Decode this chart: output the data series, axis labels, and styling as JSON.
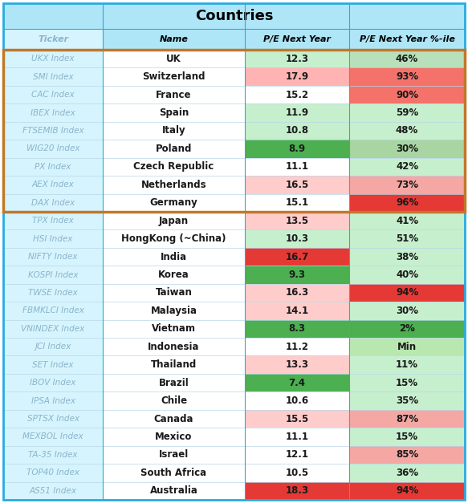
{
  "title": "Countries",
  "col_headers": [
    "Ticker",
    "Name",
    "P/E Next Year",
    "P/E Next Year %-ile"
  ],
  "rows": [
    {
      "ticker": "UKX Index",
      "name": "UK",
      "pe": "12.3",
      "pct": "46%",
      "pe_color": "#c6efce",
      "pct_color": "#b8e0bb"
    },
    {
      "ticker": "SMI Index",
      "name": "Switzerland",
      "pe": "17.9",
      "pct": "93%",
      "pe_color": "#ffb3b3",
      "pct_color": "#f4726a"
    },
    {
      "ticker": "CAC Index",
      "name": "France",
      "pe": "15.2",
      "pct": "90%",
      "pe_color": "#ffffff",
      "pct_color": "#f4726a"
    },
    {
      "ticker": "IBEX Index",
      "name": "Spain",
      "pe": "11.9",
      "pct": "59%",
      "pe_color": "#c6efce",
      "pct_color": "#c6efce"
    },
    {
      "ticker": "FTSEMIB Index",
      "name": "Italy",
      "pe": "10.8",
      "pct": "48%",
      "pe_color": "#c6efce",
      "pct_color": "#c6efce"
    },
    {
      "ticker": "WIG20 Index",
      "name": "Poland",
      "pe": "8.9",
      "pct": "30%",
      "pe_color": "#4caf50",
      "pct_color": "#a8d5a2"
    },
    {
      "ticker": "PX Index",
      "name": "Czech Republic",
      "pe": "11.1",
      "pct": "42%",
      "pe_color": "#ffffff",
      "pct_color": "#c6efce"
    },
    {
      "ticker": "AEX Index",
      "name": "Netherlands",
      "pe": "16.5",
      "pct": "73%",
      "pe_color": "#ffcccc",
      "pct_color": "#f4a7a3"
    },
    {
      "ticker": "DAX Index",
      "name": "Germany",
      "pe": "15.1",
      "pct": "96%",
      "pe_color": "#ffffff",
      "pct_color": "#e53935"
    },
    {
      "ticker": "TPX Index",
      "name": "Japan",
      "pe": "13.5",
      "pct": "41%",
      "pe_color": "#ffcccc",
      "pct_color": "#c6efce"
    },
    {
      "ticker": "HSI Index",
      "name": "HongKong (~China)",
      "pe": "10.3",
      "pct": "51%",
      "pe_color": "#c6efce",
      "pct_color": "#c6efce"
    },
    {
      "ticker": "NIFTY Index",
      "name": "India",
      "pe": "16.7",
      "pct": "38%",
      "pe_color": "#e53935",
      "pct_color": "#c6efce"
    },
    {
      "ticker": "KOSPI Index",
      "name": "Korea",
      "pe": "9.3",
      "pct": "40%",
      "pe_color": "#4caf50",
      "pct_color": "#c6efce"
    },
    {
      "ticker": "TWSE Index",
      "name": "Taiwan",
      "pe": "16.3",
      "pct": "94%",
      "pe_color": "#ffcccc",
      "pct_color": "#e53935"
    },
    {
      "ticker": "FBMKLCI Index",
      "name": "Malaysia",
      "pe": "14.1",
      "pct": "30%",
      "pe_color": "#ffcccc",
      "pct_color": "#c6efce"
    },
    {
      "ticker": "VNINDEX Index",
      "name": "Vietnam",
      "pe": "8.3",
      "pct": "2%",
      "pe_color": "#4caf50",
      "pct_color": "#4caf50"
    },
    {
      "ticker": "JCI Index",
      "name": "Indonesia",
      "pe": "11.2",
      "pct": "Min",
      "pe_color": "#ffffff",
      "pct_color": "#b8e8b0"
    },
    {
      "ticker": "SET Index",
      "name": "Thailand",
      "pe": "13.3",
      "pct": "11%",
      "pe_color": "#ffcccc",
      "pct_color": "#c6efce"
    },
    {
      "ticker": "IBOV Index",
      "name": "Brazil",
      "pe": "7.4",
      "pct": "15%",
      "pe_color": "#4caf50",
      "pct_color": "#c6efce"
    },
    {
      "ticker": "IPSA Index",
      "name": "Chile",
      "pe": "10.6",
      "pct": "35%",
      "pe_color": "#ffffff",
      "pct_color": "#c6efce"
    },
    {
      "ticker": "SPTSX Index",
      "name": "Canada",
      "pe": "15.5",
      "pct": "87%",
      "pe_color": "#ffcccc",
      "pct_color": "#f4a7a3"
    },
    {
      "ticker": "MEXBOL Index",
      "name": "Mexico",
      "pe": "11.1",
      "pct": "15%",
      "pe_color": "#ffffff",
      "pct_color": "#c6efce"
    },
    {
      "ticker": "TA-35 Index",
      "name": "Israel",
      "pe": "12.1",
      "pct": "85%",
      "pe_color": "#ffffff",
      "pct_color": "#f4a7a3"
    },
    {
      "ticker": "TOP40 Index",
      "name": "South Africa",
      "pe": "10.5",
      "pct": "36%",
      "pe_color": "#ffffff",
      "pct_color": "#c6efce"
    },
    {
      "ticker": "AS51 Index",
      "name": "Australia",
      "pe": "18.3",
      "pct": "94%",
      "pe_color": "#e53935",
      "pct_color": "#e53935"
    }
  ],
  "eu_border_rows": 9,
  "header_bg": "#aee6f8",
  "title_bg": "#aee6f8",
  "ticker_col_bg": "#d6f4fd",
  "outer_border_color": "#29abe2",
  "eu_border_color": "#c0782a",
  "grid_color": "#b8d8e8",
  "ticker_color": "#8ab4cc",
  "header_text_color": "#000000",
  "title_color": "#000000",
  "name_col_bg": "#ffffff"
}
